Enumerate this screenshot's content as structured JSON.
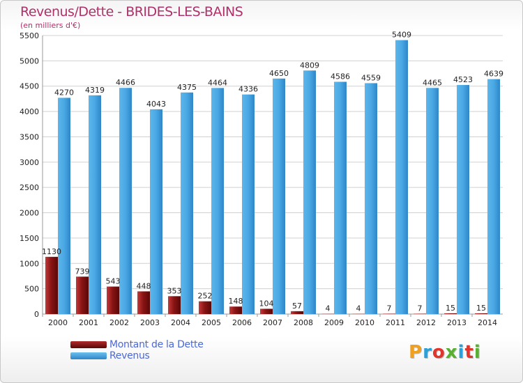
{
  "header": {
    "title": "Revenus/Dette - BRIDES-LES-BAINS",
    "subtitle": "(en milliers d'€)"
  },
  "legend": {
    "debt_label": "Montant de la Dette",
    "revenue_label": "Revenus"
  },
  "logo": {
    "text": "Proxiti",
    "letters": [
      "P",
      "r",
      "o",
      "x",
      "i",
      "t",
      "i"
    ],
    "colors": [
      "#f0a020",
      "#2a9fd8",
      "#e0342c",
      "#58b030",
      "#2a9fd8",
      "#e0342c",
      "#58b030"
    ]
  },
  "colors": {
    "debt": "#7a0e0e",
    "debt_light": "#c23a3a",
    "revenue": "#2e86c8",
    "revenue_light": "#5eb6ea",
    "title": "#b0306a",
    "legend_text": "#4a68d8"
  },
  "chart_data": {
    "type": "bar",
    "title": "Revenus/Dette - BRIDES-LES-BAINS",
    "subtitle": "(en milliers d'€)",
    "categories": [
      "2000",
      "2001",
      "2002",
      "2003",
      "2004",
      "2005",
      "2006",
      "2007",
      "2008",
      "2009",
      "2010",
      "2011",
      "2012",
      "2013",
      "2014"
    ],
    "series": [
      {
        "name": "Montant de la Dette",
        "values": [
          1130,
          739,
          543,
          448,
          353,
          252,
          148,
          104,
          57,
          4,
          4,
          7,
          7,
          15,
          15
        ]
      },
      {
        "name": "Revenus",
        "values": [
          4270,
          4319,
          4466,
          4043,
          4375,
          4464,
          4336,
          4650,
          4809,
          4586,
          4559,
          5409,
          4465,
          4523,
          4639
        ]
      }
    ],
    "ylim": [
      0,
      5500
    ],
    "yticks": [
      0,
      500,
      1000,
      1500,
      2000,
      2500,
      3000,
      3500,
      4000,
      4500,
      5000,
      5500
    ],
    "grid": true,
    "legend": "bottom-left"
  }
}
